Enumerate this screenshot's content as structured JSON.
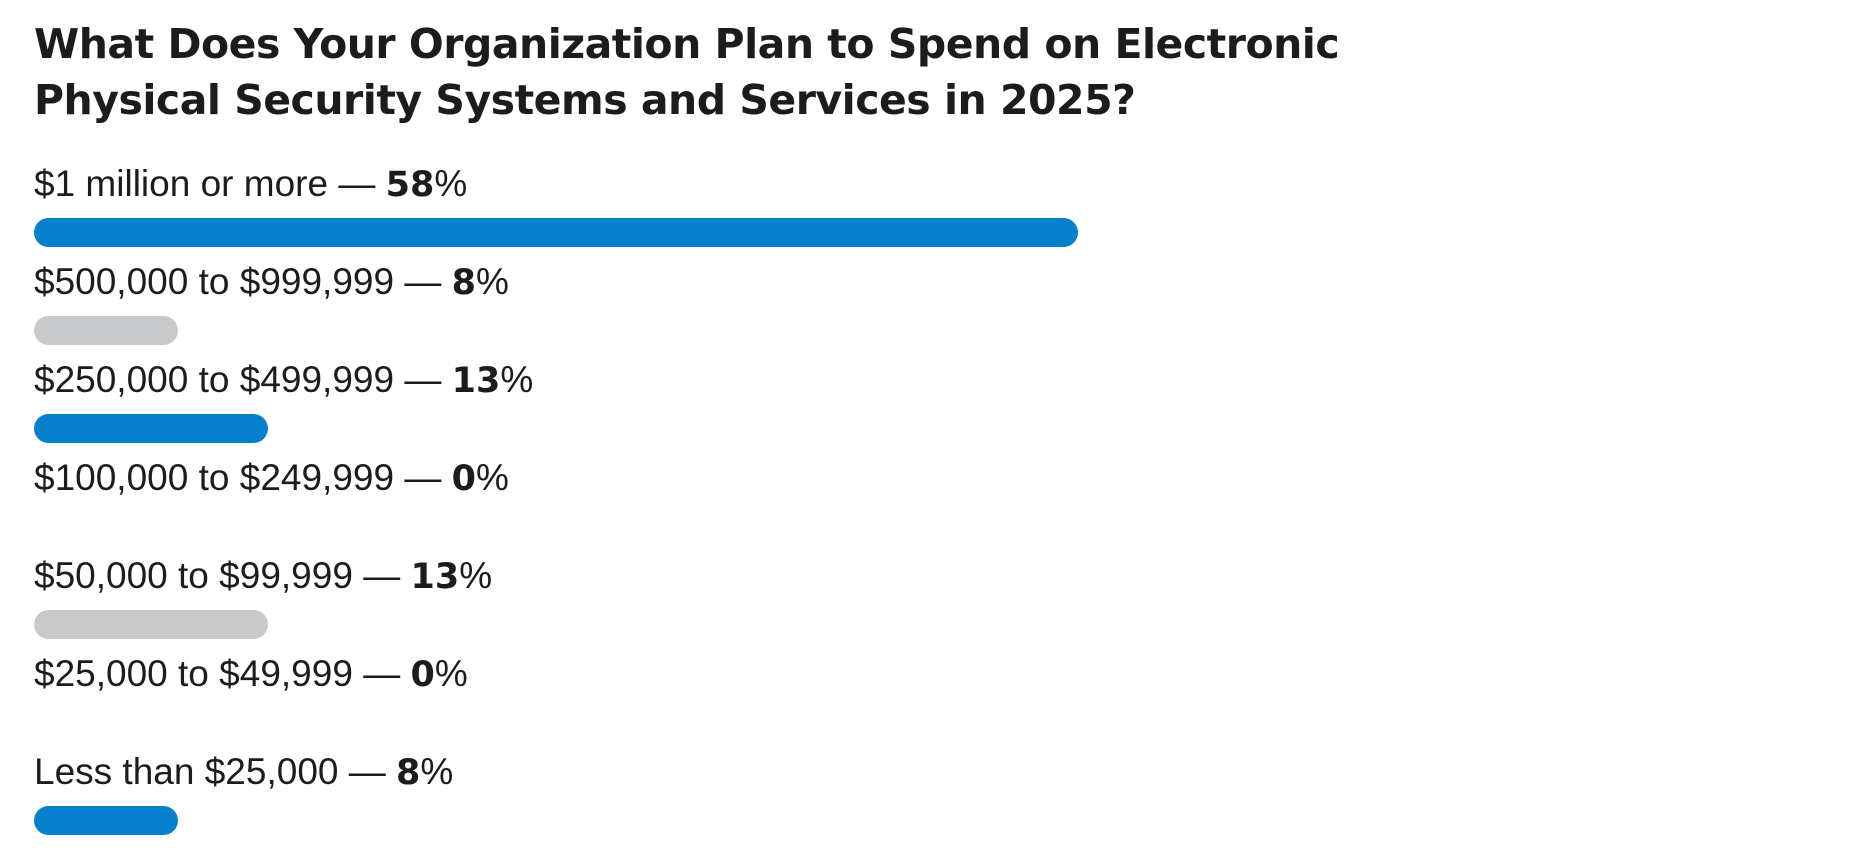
{
  "chart_data": {
    "type": "bar",
    "orientation": "horizontal",
    "title": "What Does Your Organization Plan to Spend on Electronic Physical Security Systems and Services in 2025?",
    "categories": [
      "$1 million or more",
      "$500,000 to $999,999",
      "$250,000 to $499,999",
      "$100,000 to $249,999",
      "$50,000 to $99,999",
      "$25,000 to $49,999",
      "Less than $25,000"
    ],
    "values": [
      58,
      8,
      13,
      0,
      13,
      0,
      8
    ],
    "value_labels": [
      "58",
      "8",
      "13",
      "0",
      "13",
      "0",
      "8"
    ],
    "separator": " — ",
    "unit": "%",
    "xlim": [
      0,
      58
    ],
    "bar_colors": [
      "#0480cc",
      "#c8c9cb",
      "#0480cc",
      "#c8c9cb",
      "#c8c9cb",
      "#c8c9cb",
      "#0480cc"
    ],
    "xlabel": "",
    "ylabel": "",
    "grid": false,
    "legend": "none"
  }
}
